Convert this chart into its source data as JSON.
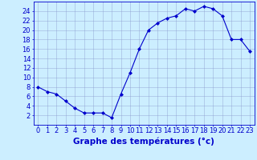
{
  "x": [
    0,
    1,
    2,
    3,
    4,
    5,
    6,
    7,
    8,
    9,
    10,
    11,
    12,
    13,
    14,
    15,
    16,
    17,
    18,
    19,
    20,
    21,
    22,
    23
  ],
  "y": [
    8,
    7,
    6.5,
    5,
    3.5,
    2.5,
    2.5,
    2.5,
    1.5,
    6.5,
    11,
    16,
    20,
    21.5,
    22.5,
    23,
    24.5,
    24,
    25,
    24.5,
    23,
    18,
    18,
    15.5
  ],
  "line_color": "#0000cc",
  "marker": "D",
  "marker_size": 2.0,
  "bg_color": "#cceeff",
  "grid_color": "#8899cc",
  "xlabel": "Graphe des températures (°c)",
  "xlabel_color": "#0000cc",
  "xlabel_fontsize": 7.5,
  "tick_color": "#0000cc",
  "tick_fontsize": 6,
  "ylim": [
    0,
    26
  ],
  "yticks": [
    2,
    4,
    6,
    8,
    10,
    12,
    14,
    16,
    18,
    20,
    22,
    24
  ],
  "xticks": [
    0,
    1,
    2,
    3,
    4,
    5,
    6,
    7,
    8,
    9,
    10,
    11,
    12,
    13,
    14,
    15,
    16,
    17,
    18,
    19,
    20,
    21,
    22,
    23
  ]
}
